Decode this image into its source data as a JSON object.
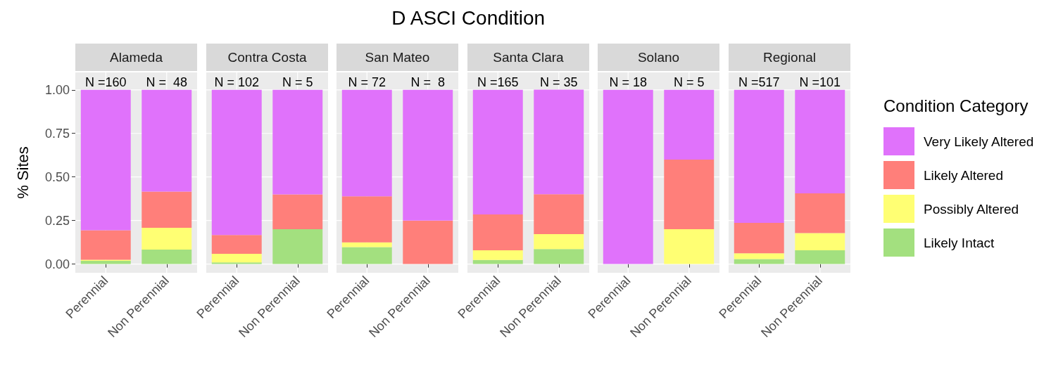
{
  "chart_data": [
    {
      "type": "bar",
      "subtitle": "Alameda",
      "ylabel": "% Sites",
      "categories": [
        "Perennial",
        "Non Perennial"
      ],
      "stacked": true,
      "grid": true,
      "ylim": [
        -0.05,
        1.1
      ],
      "yticks": [
        {
          "value": 0,
          "label": "0.00"
        },
        {
          "value": 0.25,
          "label": "0.25"
        },
        {
          "value": 0.5,
          "label": "0.50"
        },
        {
          "value": 0.75,
          "label": "0.75"
        },
        {
          "value": 1,
          "label": "1.00"
        }
      ],
      "series": [
        {
          "color": "#a3e07f",
          "values": [
            0.019,
            0.083
          ]
        },
        {
          "color": "#ffff73",
          "values": [
            0.006,
            0.125
          ]
        },
        {
          "color": "#ff7f7a",
          "values": [
            0.169,
            0.208
          ]
        },
        {
          "color": "#e072fb",
          "values": [
            0.806,
            0.584
          ]
        }
      ],
      "annotations": [
        "N =160",
        "N =  48"
      ]
    },
    {
      "type": "bar",
      "subtitle": "Contra Costa",
      "categories": [
        "Perennial",
        "Non Perennial"
      ],
      "stacked": true,
      "grid": true,
      "tick_labels": "x",
      "ylim": [
        -0.05,
        1.1
      ],
      "yticks": [
        0,
        0.25,
        0.5,
        0.75,
        1
      ],
      "series": [
        {
          "color": "#a3e07f",
          "values": [
            0.01,
            0.2
          ]
        },
        {
          "color": "#ffff73",
          "values": [
            0.049,
            0
          ]
        },
        {
          "color": "#ff7f7a",
          "values": [
            0.108,
            0.2
          ]
        },
        {
          "color": "#e072fb",
          "values": [
            0.833,
            0.6
          ]
        }
      ],
      "annotations": [
        "N = 102",
        "N = 5"
      ]
    },
    {
      "type": "bar",
      "subtitle": "San Mateo",
      "categories": [
        "Perennial",
        "Non Perennial"
      ],
      "stacked": true,
      "grid": true,
      "tick_labels": "x",
      "ylim": [
        -0.05,
        1.1
      ],
      "yticks": [
        0,
        0.25,
        0.5,
        0.75,
        1
      ],
      "series": [
        {
          "color": "#a3e07f",
          "values": [
            0.097,
            0
          ]
        },
        {
          "color": "#ffff73",
          "values": [
            0.028,
            0
          ]
        },
        {
          "color": "#ff7f7a",
          "values": [
            0.264,
            0.25
          ]
        },
        {
          "color": "#e072fb",
          "values": [
            0.611,
            0.75
          ]
        }
      ],
      "annotations": [
        "N = 72",
        "N =  8"
      ]
    },
    {
      "type": "bar",
      "title": "D ASCI Condition",
      "subtitle": "Santa Clara",
      "categories": [
        "Perennial",
        "Non Perennial"
      ],
      "stacked": true,
      "grid": true,
      "tick_labels": "x",
      "ylim": [
        -0.05,
        1.1
      ],
      "yticks": [
        0,
        0.25,
        0.5,
        0.75,
        1
      ],
      "series": [
        {
          "color": "#a3e07f",
          "values": [
            0.024,
            0.086
          ]
        },
        {
          "color": "#ffff73",
          "values": [
            0.055,
            0.086
          ]
        },
        {
          "color": "#ff7f7a",
          "values": [
            0.206,
            0.229
          ]
        },
        {
          "color": "#e072fb",
          "values": [
            0.715,
            0.6
          ]
        }
      ],
      "annotations": [
        "N =165",
        "N = 35"
      ]
    },
    {
      "type": "bar",
      "subtitle": "Solano",
      "categories": [
        "Perennial",
        "Non Perennial"
      ],
      "stacked": true,
      "grid": true,
      "tick_labels": "x",
      "ylim": [
        -0.05,
        1.1
      ],
      "yticks": [
        0,
        0.25,
        0.5,
        0.75,
        1
      ],
      "series": [
        {
          "color": "#a3e07f",
          "values": [
            0,
            0
          ]
        },
        {
          "color": "#ffff73",
          "values": [
            0,
            0.2
          ]
        },
        {
          "color": "#ff7f7a",
          "values": [
            0,
            0.4
          ]
        },
        {
          "color": "#e072fb",
          "values": [
            1,
            0.4
          ]
        }
      ],
      "annotations": [
        "N = 18",
        "N = 5"
      ]
    },
    {
      "type": "bar",
      "subtitle": "Regional",
      "categories": [
        "Perennial",
        "Non Perennial"
      ],
      "stacked": true,
      "grid": true,
      "tick_labels": "x",
      "legend": "right",
      "legend_title": "Condition Category",
      "ylim": [
        -0.05,
        1.1
      ],
      "yticks": [
        0,
        0.25,
        0.5,
        0.75,
        1
      ],
      "series": [
        {
          "name": "Likely Intact",
          "color": "#a3e07f",
          "values": [
            0.029,
            0.079
          ]
        },
        {
          "name": "Possibly Altered",
          "color": "#ffff73",
          "values": [
            0.033,
            0.099
          ]
        },
        {
          "name": "Likely Altered",
          "color": "#ff7f7a",
          "values": [
            0.174,
            0.228
          ]
        },
        {
          "name": "Very Likely Altered",
          "color": "#e072fb",
          "values": [
            0.764,
            0.594
          ]
        }
      ],
      "annotations": [
        "N =517",
        "N =101"
      ]
    }
  ]
}
